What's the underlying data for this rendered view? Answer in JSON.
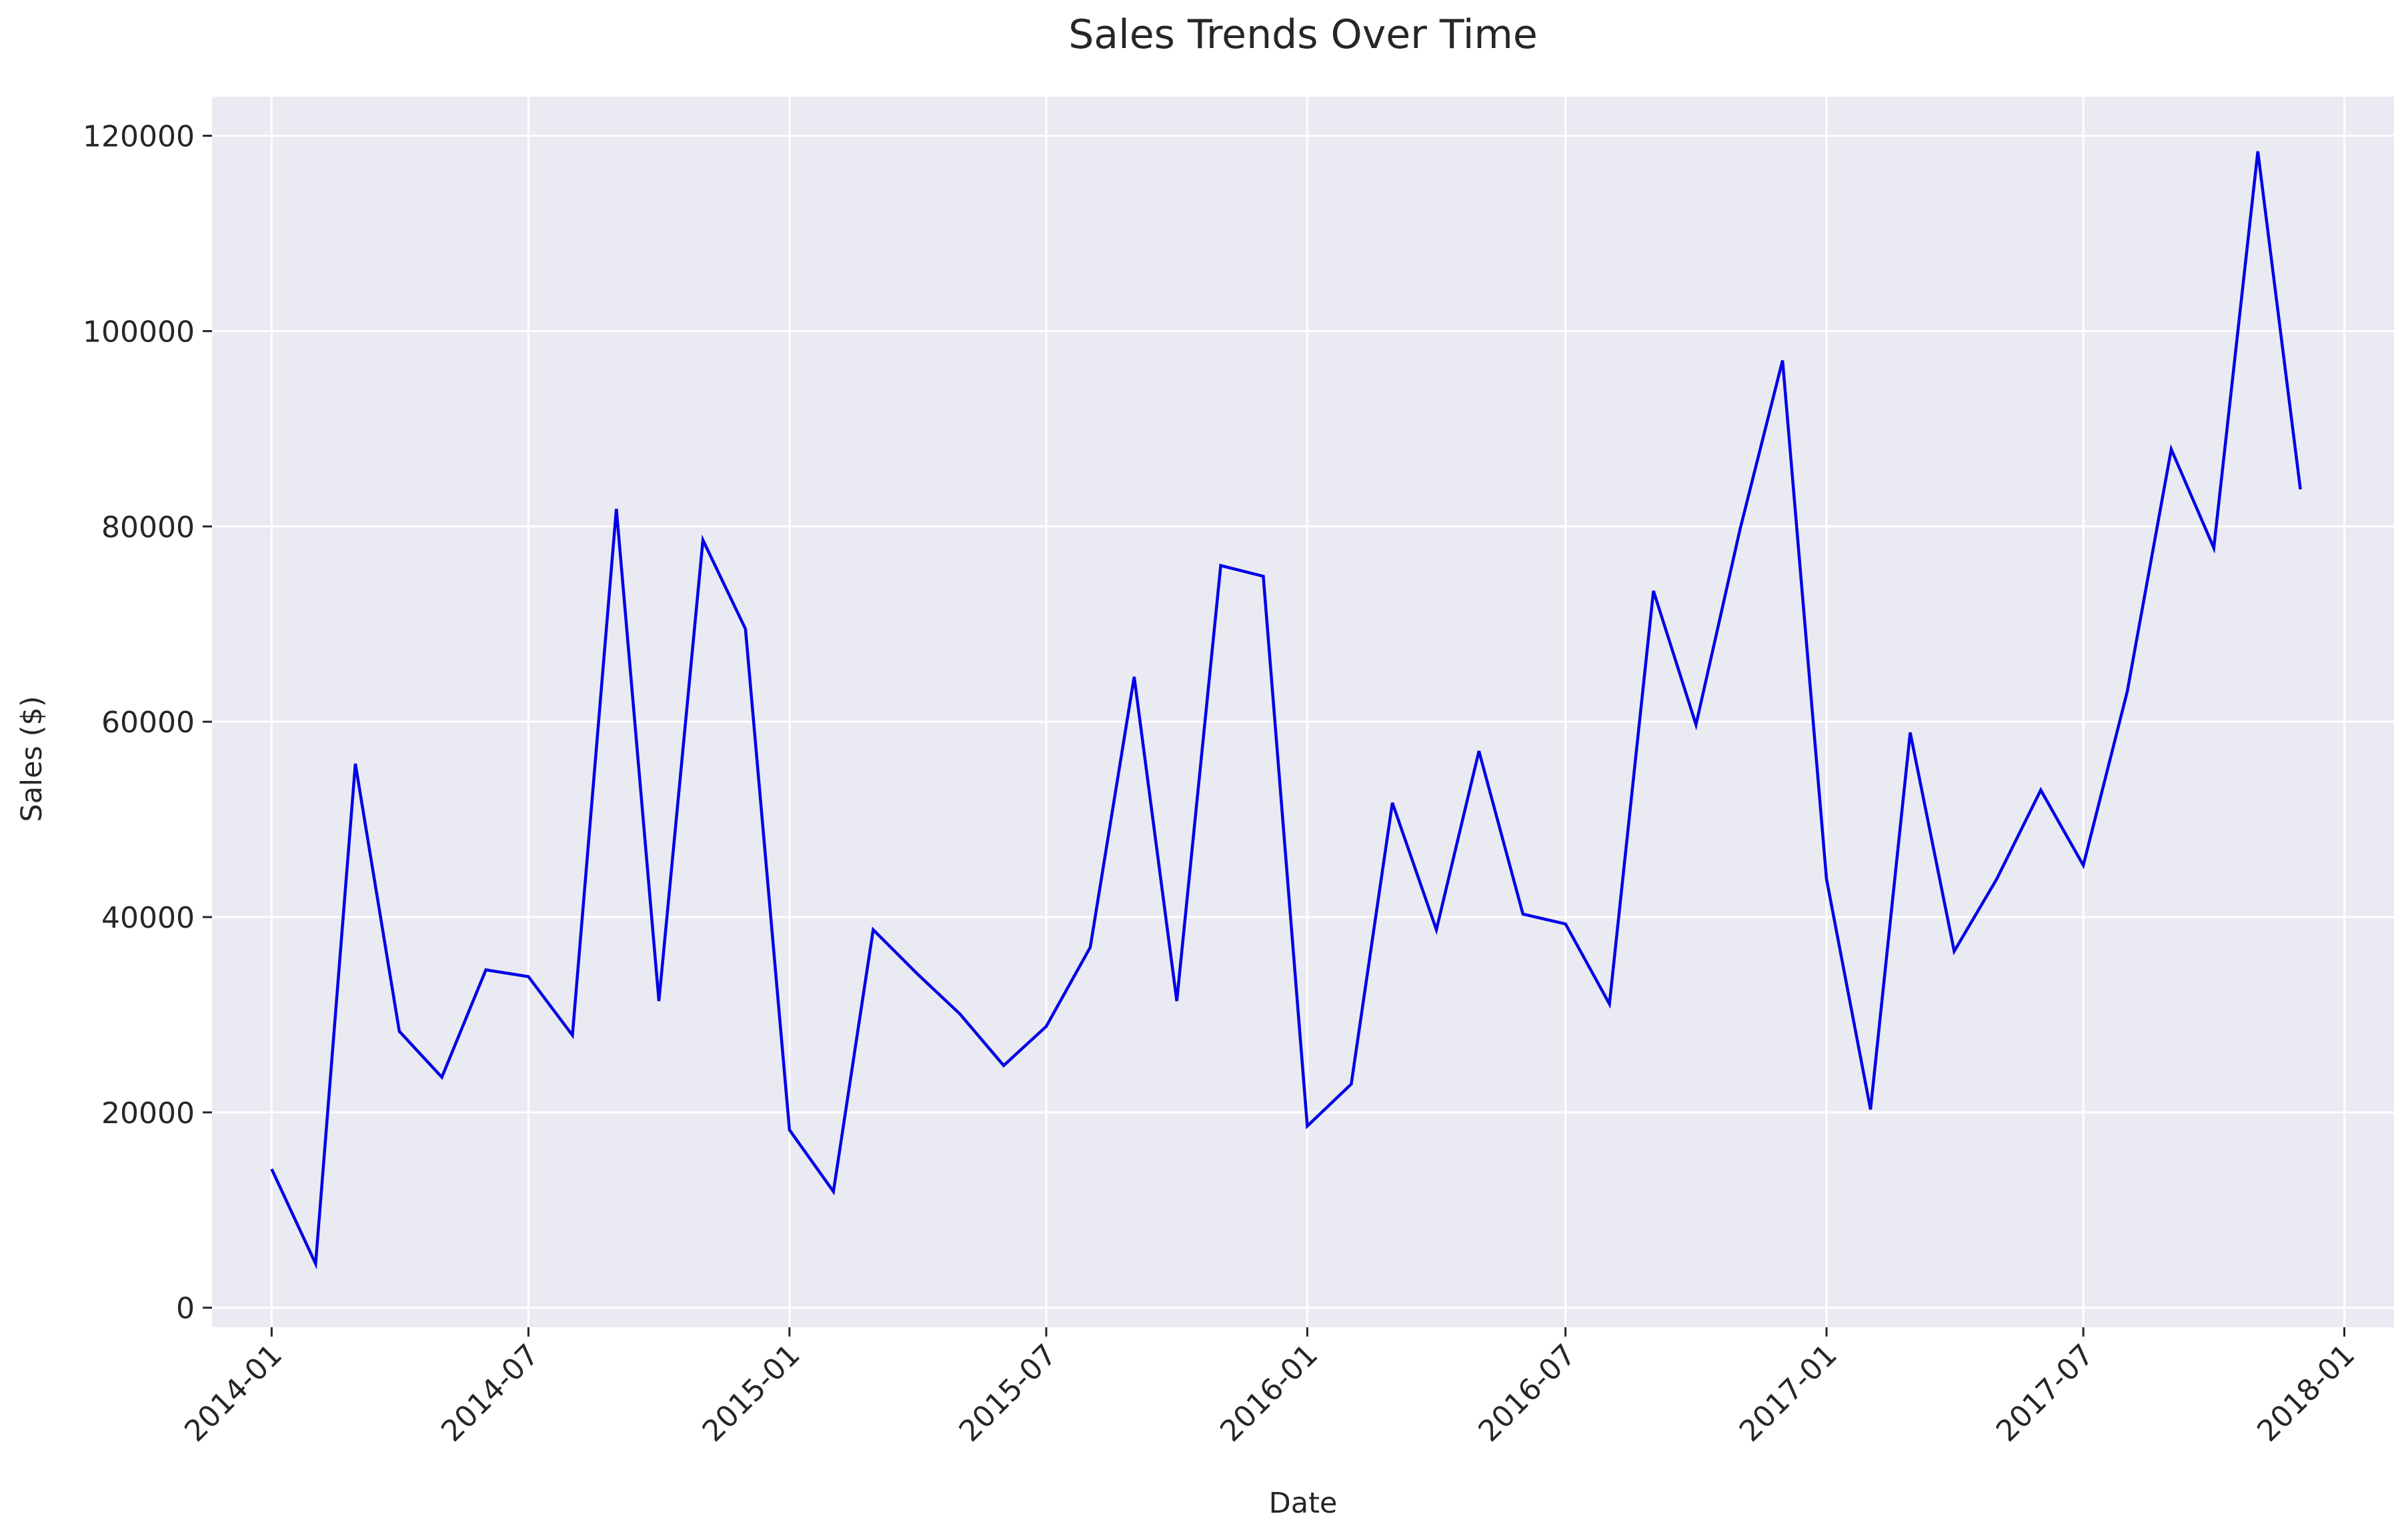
{
  "chart_data": {
    "type": "line",
    "title": "Sales Trends Over Time",
    "xlabel": "Date",
    "ylabel": "Sales ($)",
    "grid": true,
    "legend": "none",
    "xlim": [
      "2013-11-20",
      "2018-02-05"
    ],
    "ylim": [
      -2000,
      124000
    ],
    "x_ticks": [
      "2014-01",
      "2014-07",
      "2015-01",
      "2015-07",
      "2016-01",
      "2016-07",
      "2017-01",
      "2017-07",
      "2018-01"
    ],
    "y_ticks": [
      0,
      20000,
      40000,
      60000,
      80000,
      100000,
      120000
    ],
    "y_tick_labels": [
      "0",
      "20000",
      "40000",
      "60000",
      "80000",
      "100000",
      "120000"
    ],
    "colors": {
      "line": "#0000e6",
      "plot_bg": "#eaeaf2",
      "grid": "#ffffff"
    },
    "series": [
      {
        "x": [
          "2014-01-01",
          "2014-02-01",
          "2014-03-01",
          "2014-04-01",
          "2014-05-01",
          "2014-06-01",
          "2014-07-01",
          "2014-08-01",
          "2014-09-01",
          "2014-10-01",
          "2014-11-01",
          "2014-12-01",
          "2015-01-01",
          "2015-02-01",
          "2015-03-01",
          "2015-04-01",
          "2015-05-01",
          "2015-06-01",
          "2015-07-01",
          "2015-08-01",
          "2015-09-01",
          "2015-10-01",
          "2015-11-01",
          "2015-12-01",
          "2016-01-01",
          "2016-02-01",
          "2016-03-01",
          "2016-04-01",
          "2016-05-01",
          "2016-06-01",
          "2016-07-01",
          "2016-08-01",
          "2016-09-01",
          "2016-10-01",
          "2016-11-01",
          "2016-12-01",
          "2017-01-01",
          "2017-02-01",
          "2017-03-01",
          "2017-04-01",
          "2017-05-01",
          "2017-06-01",
          "2017-07-01",
          "2017-08-01",
          "2017-09-01",
          "2017-10-01",
          "2017-11-01",
          "2017-12-01"
        ],
        "values": [
          14200,
          4500,
          55700,
          28300,
          23600,
          34600,
          33900,
          27900,
          81800,
          31400,
          78600,
          69500,
          18200,
          11900,
          38700,
          34200,
          30100,
          24800,
          28800,
          36900,
          64600,
          31400,
          76000,
          74900,
          18600,
          22900,
          51700,
          38700,
          57000,
          40300,
          39300,
          31100,
          73400,
          59700,
          79700,
          97000,
          43900,
          20300,
          58900,
          36500,
          43900,
          53000,
          45300,
          63100,
          87900,
          77800,
          118400,
          83800
        ]
      }
    ]
  }
}
